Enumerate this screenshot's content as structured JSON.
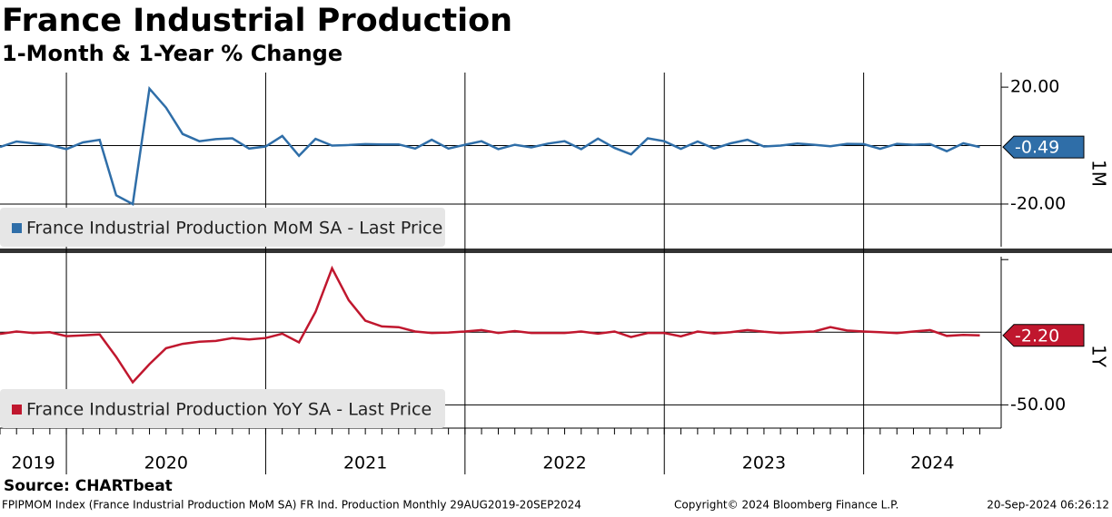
{
  "header": {
    "title": "France Industrial Production",
    "subtitle": "1-Month & 1-Year % Change"
  },
  "chart_data": [
    {
      "type": "line",
      "axis_label": "1M",
      "x": [
        2019.667,
        2019.75,
        2019.833,
        2019.917,
        2020,
        2020.083,
        2020.167,
        2020.25,
        2020.333,
        2020.417,
        2020.5,
        2020.583,
        2020.667,
        2020.75,
        2020.833,
        2020.917,
        2021,
        2021.083,
        2021.167,
        2021.25,
        2021.333,
        2021.417,
        2021.5,
        2021.583,
        2021.667,
        2021.75,
        2021.833,
        2021.917,
        2022,
        2022.083,
        2022.167,
        2022.25,
        2022.333,
        2022.417,
        2022.5,
        2022.583,
        2022.667,
        2022.75,
        2022.833,
        2022.917,
        2023,
        2023.083,
        2023.167,
        2023.25,
        2023.333,
        2023.417,
        2023.5,
        2023.583,
        2023.667,
        2023.75,
        2023.833,
        2023.917,
        2024,
        2024.083,
        2024.167,
        2024.25,
        2024.333,
        2024.417,
        2024.5,
        2024.583
      ],
      "xlim": [
        2019.667,
        2024.69
      ],
      "xticks": [
        2019,
        2020,
        2021,
        2022,
        2023,
        2024
      ],
      "series": [
        {
          "name": "France Industrial Production MoM SA - Last Price",
          "color": "#2f6ea8",
          "values": [
            -0.5,
            1.4,
            0.8,
            0.2,
            -1.2,
            1.1,
            2,
            -17,
            -20,
            19.5,
            13,
            4,
            1.5,
            2.2,
            2.5,
            -1,
            -0.3,
            3.3,
            -3.5,
            2.3,
            0,
            0.2,
            0.5,
            0.4,
            0.4,
            -1,
            2,
            -1,
            0.3,
            1.5,
            -1.2,
            0.3,
            -0.6,
            0.7,
            1.5,
            -1.2,
            2.4,
            -0.8,
            -3,
            2.5,
            1.5,
            -1.1,
            1.4,
            -1,
            0.8,
            2,
            -0.3,
            0,
            0.7,
            0.3,
            -0.2,
            0.6,
            0.5,
            -1.1,
            0.6,
            0.3,
            0.5,
            -1.9,
            0.8,
            -0.49
          ],
          "last_label": "-0.49"
        }
      ],
      "ylim": [
        -34.6,
        25
      ],
      "yticks": [
        {
          "value": 20,
          "label": "20.00"
        },
        {
          "value": -20,
          "label": "-20.00"
        }
      ],
      "ygrid": [
        -20,
        0
      ]
    },
    {
      "type": "line",
      "axis_label": "1Y",
      "series": [
        {
          "name": "France Industrial Production YoY SA - Last Price",
          "color": "#c0172e",
          "values": [
            -1.2,
            0.5,
            -0.5,
            0,
            -2.7,
            -2.2,
            -1.5,
            -17,
            -34.5,
            -22,
            -11,
            -8,
            -6.5,
            -6,
            -4,
            -5,
            -4,
            -1,
            -7,
            14,
            44,
            22,
            8,
            4,
            3.5,
            0.5,
            -0.5,
            -0.2,
            0.5,
            1.5,
            -0.5,
            0.8,
            -0.5,
            -0.5,
            -0.5,
            0.5,
            -1,
            0.5,
            -3.3,
            -0.5,
            -0.5,
            -2.8,
            0.5,
            -0.8,
            0,
            1.5,
            0.3,
            -0.5,
            0,
            0.5,
            3.5,
            1.2,
            0.5,
            0,
            -0.6,
            0.5,
            1.5,
            -2.5,
            -1.8,
            -2.2
          ],
          "last_label": "-2.20"
        }
      ],
      "ylim": [
        -66,
        52
      ],
      "yticks": [
        {
          "value": -50,
          "label": "-50.00"
        }
      ],
      "yminor": [
        50
      ],
      "ygrid": [
        -50,
        0
      ]
    }
  ],
  "source": "Source: CHARTbeat",
  "footer": {
    "left": "FPIPMOM Index (France Industrial Production MoM SA) FR Ind. Production  Monthly 29AUG2019-20SEP2024",
    "center": "Copyright© 2024 Bloomberg Finance L.P.",
    "right": "20-Sep-2024 06:26:12"
  }
}
